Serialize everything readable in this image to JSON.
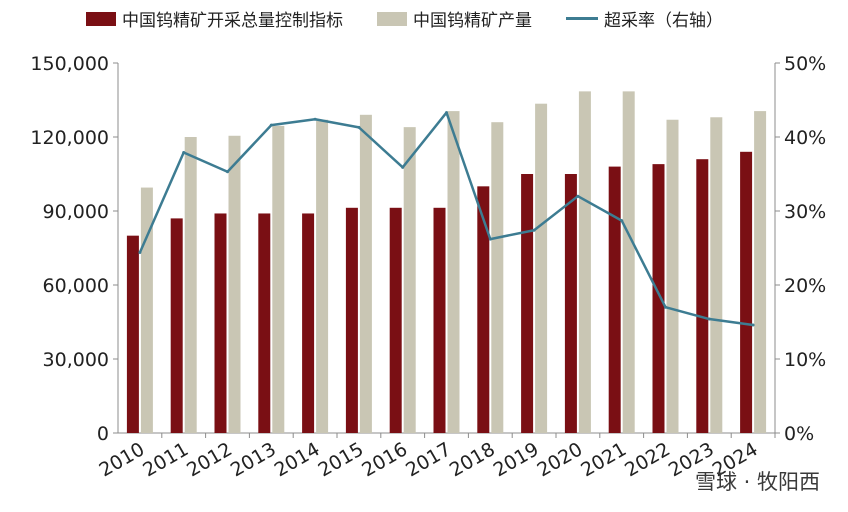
{
  "chart_data": {
    "type": "bar",
    "categories": [
      "2010",
      "2011",
      "2012",
      "2013",
      "2014",
      "2015",
      "2016",
      "2017",
      "2018",
      "2019",
      "2020",
      "2021",
      "2022",
      "2023",
      "2024"
    ],
    "series": [
      {
        "name": "中国钨精矿开采总量控制指标",
        "kind": "bar",
        "axis": "left",
        "color": "#7a0f14",
        "values": [
          80000,
          87000,
          89000,
          89000,
          89000,
          91300,
          91300,
          91300,
          100000,
          105000,
          105000,
          108000,
          109000,
          111000,
          114000
        ]
      },
      {
        "name": "中国钨精矿产量",
        "kind": "bar",
        "axis": "left",
        "color": "#c9c6b4",
        "values": [
          99500,
          120000,
          120500,
          124500,
          127000,
          129000,
          124000,
          130500,
          126000,
          133500,
          138500,
          138500,
          127000,
          128000,
          130500
        ]
      },
      {
        "name": "超采率（右轴）",
        "kind": "line",
        "axis": "right",
        "color": "#3d7c92",
        "values": [
          24.4,
          37.9,
          35.3,
          41.6,
          42.4,
          41.3,
          35.9,
          43.3,
          26.2,
          27.4,
          32.0,
          28.7,
          17.0,
          15.4,
          14.6
        ]
      }
    ],
    "y_left": {
      "min": 0,
      "max": 150000,
      "ticks": [
        "0",
        "30,000",
        "60,000",
        "90,000",
        "120,000",
        "150,000"
      ]
    },
    "y_right": {
      "min": 0,
      "max": 50,
      "ticks": [
        "0%",
        "10%",
        "20%",
        "30%",
        "40%",
        "50%"
      ]
    },
    "grid": false,
    "legend_position": "top"
  },
  "legend": {
    "quota_label": "中国钨精矿开采总量控制指标",
    "output_label": "中国钨精矿产量",
    "rate_label": "超采率（右轴）"
  },
  "watermark": "雪球 · 牧阳西"
}
